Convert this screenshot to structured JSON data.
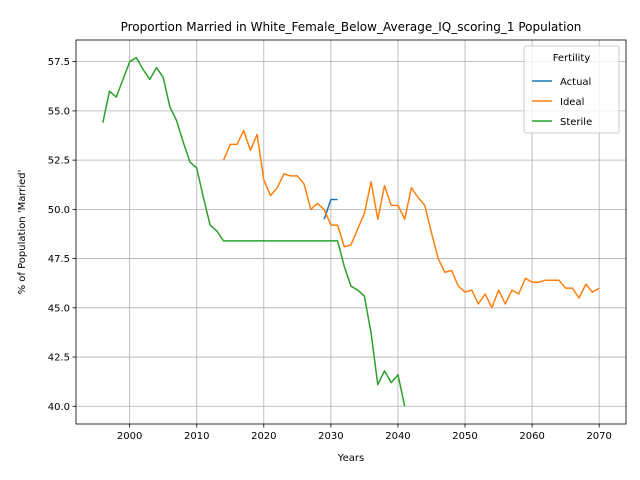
{
  "chart_data": {
    "type": "line",
    "title": "Proportion Married in White_Female_Below_Average_IQ_scoring_1 Population",
    "xlabel": "Years",
    "ylabel": "% of Population 'Married'",
    "xlim": [
      1992,
      2074
    ],
    "ylim": [
      39.1,
      58.6
    ],
    "xticks": [
      2000,
      2010,
      2020,
      2030,
      2040,
      2050,
      2060,
      2070
    ],
    "yticks": [
      40.0,
      42.5,
      45.0,
      47.5,
      50.0,
      52.5,
      55.0,
      57.5
    ],
    "ytick_labels": [
      "40.0",
      "42.5",
      "45.0",
      "47.5",
      "50.0",
      "52.5",
      "55.0",
      "57.5"
    ],
    "grid": true,
    "legend_title": "Fertility",
    "legend_position": "top-right",
    "series": [
      {
        "name": "Actual",
        "color": "#1f77b4",
        "x": [
          2029,
          2030,
          2031
        ],
        "y": [
          49.5,
          50.5,
          50.5
        ]
      },
      {
        "name": "Ideal",
        "color": "#ff7f0e",
        "x": [
          2014,
          2015,
          2016,
          2017,
          2018,
          2019,
          2020,
          2021,
          2022,
          2023,
          2024,
          2025,
          2026,
          2027,
          2028,
          2029,
          2030,
          2031,
          2032,
          2033,
          2034,
          2035,
          2036,
          2037,
          2038,
          2039,
          2040,
          2041,
          2042,
          2043,
          2044,
          2045,
          2046,
          2047,
          2048,
          2049,
          2050,
          2051,
          2052,
          2053,
          2054,
          2055,
          2056,
          2057,
          2058,
          2059,
          2060,
          2061,
          2062,
          2063,
          2064,
          2065,
          2066,
          2067,
          2068,
          2069,
          2070
        ],
        "y": [
          52.5,
          53.3,
          53.3,
          54.0,
          53.0,
          53.8,
          51.5,
          50.7,
          51.1,
          51.8,
          51.7,
          51.7,
          51.3,
          50.0,
          50.3,
          50.0,
          49.2,
          49.2,
          48.1,
          48.2,
          49.0,
          49.8,
          51.4,
          49.5,
          51.2,
          50.2,
          50.2,
          49.5,
          51.1,
          50.6,
          50.2,
          48.8,
          47.5,
          46.8,
          46.9,
          46.1,
          45.8,
          45.9,
          45.2,
          45.7,
          45.0,
          45.9,
          45.2,
          45.9,
          45.7,
          46.5,
          46.3,
          46.3,
          46.4,
          46.4,
          46.4,
          46.0,
          46.0,
          45.5,
          46.2,
          45.8,
          46.0
        ]
      },
      {
        "name": "Sterile",
        "color": "#2ca02c",
        "x": [
          1996,
          1997,
          1998,
          1999,
          2000,
          2001,
          2002,
          2003,
          2004,
          2005,
          2006,
          2007,
          2008,
          2009,
          2010,
          2011,
          2012,
          2013,
          2014,
          2015,
          2016,
          2017,
          2018,
          2019,
          2020,
          2021,
          2022,
          2023,
          2024,
          2025,
          2026,
          2027,
          2028,
          2029,
          2030,
          2031,
          2032,
          2033,
          2034,
          2035,
          2036,
          2037,
          2038,
          2039,
          2040,
          2041
        ],
        "y": [
          54.4,
          56.0,
          55.7,
          56.6,
          57.5,
          57.7,
          57.1,
          56.6,
          57.2,
          56.7,
          55.2,
          54.5,
          53.4,
          52.4,
          52.1,
          50.6,
          49.2,
          48.9,
          48.4,
          48.4,
          48.4,
          48.4,
          48.4,
          48.4,
          48.4,
          48.4,
          48.4,
          48.4,
          48.4,
          48.4,
          48.4,
          48.4,
          48.4,
          48.4,
          48.4,
          48.4,
          47.1,
          46.1,
          45.9,
          45.6,
          43.7,
          41.1,
          41.8,
          41.2,
          41.6,
          40.0
        ]
      }
    ]
  }
}
